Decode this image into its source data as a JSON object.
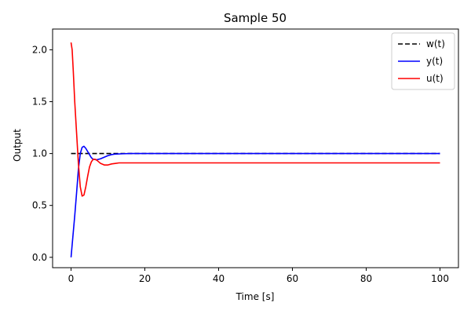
{
  "chart_data": {
    "type": "line",
    "title": "Sample 50",
    "xlabel": "Time [s]",
    "ylabel": "Output",
    "xlim": [
      -5,
      105
    ],
    "ylim": [
      -0.1,
      2.2
    ],
    "xticks": [
      0,
      20,
      40,
      60,
      80,
      100
    ],
    "xtick_labels": [
      "0",
      "20",
      "40",
      "60",
      "80",
      "100"
    ],
    "yticks": [
      0.0,
      0.5,
      1.0,
      1.5,
      2.0
    ],
    "ytick_labels": [
      "0.0",
      "0.5",
      "1.0",
      "1.5",
      "2.0"
    ],
    "grid": false,
    "legend_position": "top-right",
    "series": [
      {
        "name": "w(t)",
        "color": "#000000",
        "style": "dashed",
        "x": [
          0,
          100
        ],
        "y": [
          1.0,
          1.0
        ]
      },
      {
        "name": "y(t)",
        "color": "#0000ff",
        "style": "solid",
        "x": [
          0,
          0.5,
          1,
          1.5,
          2,
          2.5,
          3,
          3.5,
          4,
          4.5,
          5,
          5.5,
          6,
          7,
          8,
          9,
          10,
          11,
          12,
          14,
          16,
          20,
          30,
          50,
          100
        ],
        "y": [
          0.0,
          0.2,
          0.4,
          0.62,
          0.85,
          1.0,
          1.06,
          1.07,
          1.05,
          1.02,
          0.99,
          0.96,
          0.945,
          0.94,
          0.95,
          0.965,
          0.98,
          0.99,
          0.995,
          0.998,
          1.0,
          1.0,
          1.0,
          1.0,
          1.0
        ]
      },
      {
        "name": "u(t)",
        "color": "#ff0000",
        "style": "solid",
        "x": [
          0,
          0.3,
          0.6,
          1,
          1.5,
          2,
          2.5,
          3,
          3.5,
          4,
          4.5,
          5,
          5.5,
          6,
          6.5,
          7,
          7.5,
          8,
          9,
          10,
          11,
          12,
          13,
          14,
          16,
          20,
          30,
          50,
          100
        ],
        "y": [
          2.07,
          2.0,
          1.8,
          1.5,
          1.2,
          0.9,
          0.68,
          0.59,
          0.6,
          0.68,
          0.78,
          0.87,
          0.92,
          0.945,
          0.945,
          0.935,
          0.92,
          0.905,
          0.89,
          0.89,
          0.9,
          0.905,
          0.91,
          0.91,
          0.91,
          0.91,
          0.91,
          0.91,
          0.91
        ]
      }
    ]
  }
}
